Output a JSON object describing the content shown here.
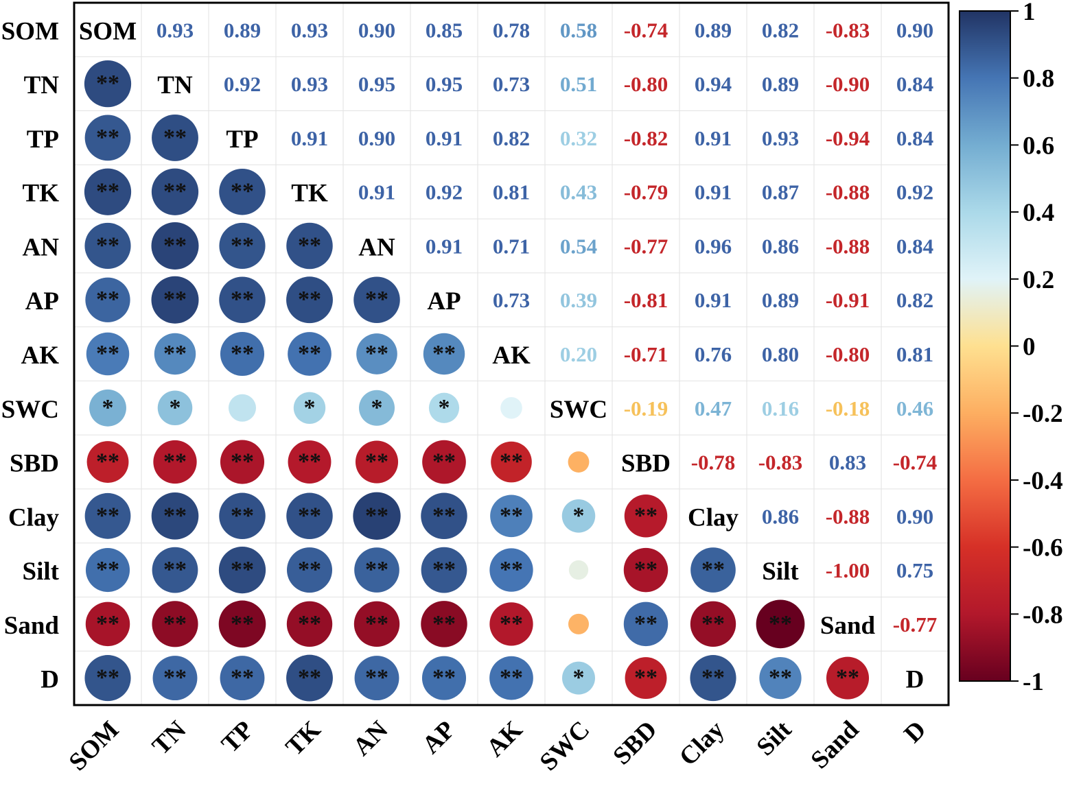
{
  "chart_data": {
    "type": "heatmap",
    "variables": [
      "SOM",
      "TN",
      "TP",
      "TK",
      "AN",
      "AP",
      "AK",
      "SWC",
      "SBD",
      "Clay",
      "Silt",
      "Sand",
      "D"
    ],
    "upper": [
      [
        null,
        "0.93",
        "0.89",
        "0.93",
        "0.90",
        "0.85",
        "0.78",
        "0.58",
        "-0.74",
        "0.89",
        "0.82",
        "-0.83",
        "0.90"
      ],
      [
        null,
        null,
        "0.92",
        "0.93",
        "0.95",
        "0.95",
        "0.73",
        "0.51",
        "-0.80",
        "0.94",
        "0.89",
        "-0.90",
        "0.84"
      ],
      [
        null,
        null,
        null,
        "0.91",
        "0.90",
        "0.91",
        "0.82",
        "0.32",
        "-0.82",
        "0.91",
        "0.93",
        "-0.94",
        "0.84"
      ],
      [
        null,
        null,
        null,
        null,
        "0.91",
        "0.92",
        "0.81",
        "0.43",
        "-0.79",
        "0.91",
        "0.87",
        "-0.88",
        "0.92"
      ],
      [
        null,
        null,
        null,
        null,
        null,
        "0.91",
        "0.71",
        "0.54",
        "-0.77",
        "0.96",
        "0.86",
        "-0.88",
        "0.84"
      ],
      [
        null,
        null,
        null,
        null,
        null,
        null,
        "0.73",
        "0.39",
        "-0.81",
        "0.91",
        "0.89",
        "-0.91",
        "0.82"
      ],
      [
        null,
        null,
        null,
        null,
        null,
        null,
        null,
        "0.20",
        "-0.71",
        "0.76",
        "0.80",
        "-0.80",
        "0.81"
      ],
      [
        null,
        null,
        null,
        null,
        null,
        null,
        null,
        null,
        "-0.19",
        "0.47",
        "0.16",
        "-0.18",
        "0.46"
      ],
      [
        null,
        null,
        null,
        null,
        null,
        null,
        null,
        null,
        null,
        "-0.78",
        "-0.83",
        "0.83",
        "-0.74"
      ],
      [
        null,
        null,
        null,
        null,
        null,
        null,
        null,
        null,
        null,
        null,
        "0.86",
        "-0.88",
        "0.90"
      ],
      [
        null,
        null,
        null,
        null,
        null,
        null,
        null,
        null,
        null,
        null,
        null,
        "-1.00",
        "0.75"
      ],
      [
        null,
        null,
        null,
        null,
        null,
        null,
        null,
        null,
        null,
        null,
        null,
        null,
        "-0.77"
      ],
      [
        null,
        null,
        null,
        null,
        null,
        null,
        null,
        null,
        null,
        null,
        null,
        null,
        null
      ]
    ],
    "significance": [
      [
        null,
        null,
        null,
        null,
        null,
        null,
        null,
        null,
        null,
        null,
        null,
        null,
        null
      ],
      [
        "**",
        null,
        null,
        null,
        null,
        null,
        null,
        null,
        null,
        null,
        null,
        null,
        null
      ],
      [
        "**",
        "**",
        null,
        null,
        null,
        null,
        null,
        null,
        null,
        null,
        null,
        null,
        null
      ],
      [
        "**",
        "**",
        "**",
        null,
        null,
        null,
        null,
        null,
        null,
        null,
        null,
        null,
        null
      ],
      [
        "**",
        "**",
        "**",
        "**",
        null,
        null,
        null,
        null,
        null,
        null,
        null,
        null,
        null
      ],
      [
        "**",
        "**",
        "**",
        "**",
        "**",
        null,
        null,
        null,
        null,
        null,
        null,
        null,
        null
      ],
      [
        "**",
        "**",
        "**",
        "**",
        "**",
        "**",
        null,
        null,
        null,
        null,
        null,
        null,
        null
      ],
      [
        "*",
        "*",
        "",
        "*",
        "*",
        "*",
        "",
        null,
        null,
        null,
        null,
        null,
        null
      ],
      [
        "**",
        "**",
        "**",
        "**",
        "**",
        "**",
        "**",
        "",
        null,
        null,
        null,
        null,
        null
      ],
      [
        "**",
        "**",
        "**",
        "**",
        "**",
        "**",
        "**",
        "*",
        "**",
        null,
        null,
        null,
        null
      ],
      [
        "**",
        "**",
        "**",
        "**",
        "**",
        "**",
        "**",
        "",
        "**",
        "**",
        null,
        null,
        null
      ],
      [
        "**",
        "**",
        "**",
        "**",
        "**",
        "**",
        "**",
        "",
        "**",
        "**",
        "**",
        null,
        null
      ],
      [
        "**",
        "**",
        "**",
        "**",
        "**",
        "**",
        "**",
        "*",
        "**",
        "**",
        "**",
        "**",
        null
      ]
    ],
    "colorbar": {
      "range": [
        -1,
        1
      ],
      "ticks": [
        "1",
        "0.8",
        "0.6",
        "0.4",
        "0.2",
        "0",
        "-0.2",
        "-0.4",
        "-0.6",
        "-0.8",
        "-1"
      ],
      "colors": {
        "neg_strong": "#67001f",
        "neg": "#c9302a",
        "neg_light": "#f4a05a",
        "neutral": "#fde9b0",
        "pos_light": "#cde6f2",
        "pos": "#4a7fbf",
        "pos_strong": "#23406f"
      }
    }
  }
}
